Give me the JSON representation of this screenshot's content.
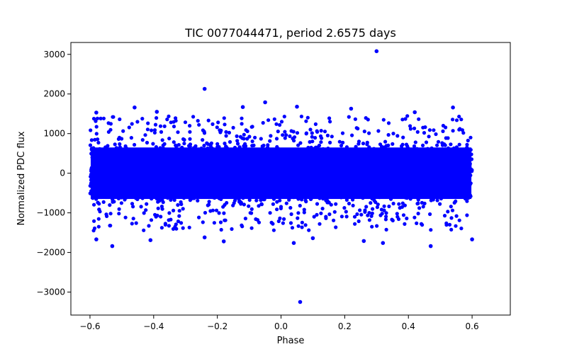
{
  "chart_data": {
    "type": "scatter",
    "title": "TIC 0077044471, period 2.6575 days",
    "xlabel": "Phase",
    "ylabel": "Normalized PDC flux",
    "xlim": [
      -0.66,
      0.72
    ],
    "ylim": [
      -3580,
      3300
    ],
    "xticks": [
      -0.6,
      -0.4,
      -0.2,
      0.0,
      0.2,
      0.4,
      0.6
    ],
    "xtick_labels": [
      "−0.6",
      "−0.4",
      "−0.2",
      "0.0",
      "0.2",
      "0.4",
      "0.6"
    ],
    "yticks": [
      -3000,
      -2000,
      -1000,
      0,
      1000,
      2000,
      3000
    ],
    "ytick_labels": [
      "−3000",
      "−2000",
      "−1000",
      "0",
      "1000",
      "2000",
      "3000"
    ],
    "grid": false,
    "marker_color": "#0000ff",
    "series": [
      {
        "name": "PDC flux",
        "description": "dense band of points from phase -0.6 to 0.6, flux roughly -1100 to 1100",
        "x_range": [
          -0.6,
          0.6
        ],
        "core_flux_range": [
          -1100,
          1100
        ],
        "outliers": [
          {
            "x": 0.3,
            "y": 3080
          },
          {
            "x": -0.24,
            "y": 2130
          },
          {
            "x": -0.05,
            "y": 1790
          },
          {
            "x": 0.05,
            "y": 1680
          },
          {
            "x": 0.22,
            "y": 1630
          },
          {
            "x": 0.54,
            "y": 1660
          },
          {
            "x": -0.46,
            "y": 1660
          },
          {
            "x": -0.12,
            "y": 1670
          },
          {
            "x": 0.42,
            "y": 1540
          },
          {
            "x": -0.58,
            "y": 1530
          },
          {
            "x": -0.39,
            "y": 1550
          },
          {
            "x": 0.06,
            "y": -3250
          },
          {
            "x": -0.53,
            "y": -1840
          },
          {
            "x": 0.47,
            "y": -1840
          },
          {
            "x": 0.32,
            "y": -1760
          },
          {
            "x": -0.58,
            "y": -1670
          },
          {
            "x": -0.41,
            "y": -1690
          },
          {
            "x": -0.24,
            "y": -1620
          },
          {
            "x": 0.26,
            "y": -1710
          },
          {
            "x": 0.6,
            "y": -1670
          },
          {
            "x": 0.04,
            "y": -1760
          },
          {
            "x": -0.18,
            "y": -1720
          },
          {
            "x": 0.1,
            "y": -1640
          }
        ]
      }
    ]
  }
}
